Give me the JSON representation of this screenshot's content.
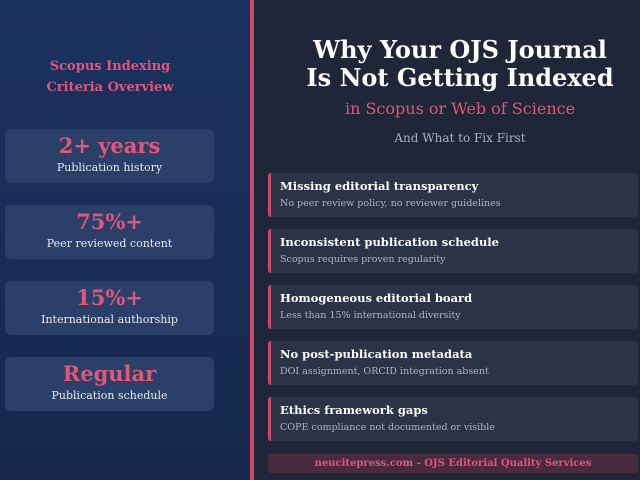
{
  "sidebar": {
    "title_lines": [
      "Scopus Indexing",
      "Criteria Overview"
    ],
    "stats": [
      {
        "value": "2+ years",
        "label": "Publication history"
      },
      {
        "value": "75%+",
        "label": "Peer reviewed content"
      },
      {
        "value": "15%+",
        "label": "International authorship"
      },
      {
        "value": "Regular",
        "label": "Publication schedule"
      }
    ]
  },
  "header": {
    "title_lines": [
      "Why Your OJS Journal",
      "Is Not Getting Indexed"
    ],
    "subtitle": "in Scopus or Web of Science",
    "tagline": "And What to Fix First"
  },
  "issues": [
    {
      "title": "Missing editorial transparency",
      "description": "No peer review policy, no reviewer guidelines"
    },
    {
      "title": "Inconsistent publication schedule",
      "description": "Scopus requires proven regularity"
    },
    {
      "title": "Homogeneous editorial board",
      "description": "Less than 15% international diversity"
    },
    {
      "title": "No post-publication metadata",
      "description": "DOI assignment, ORCID integration absent"
    },
    {
      "title": "Ethics framework gaps",
      "description": "COPE compliance not documented or visible"
    }
  ],
  "footer": "neucitepress.com - OJS Editorial Quality Services"
}
